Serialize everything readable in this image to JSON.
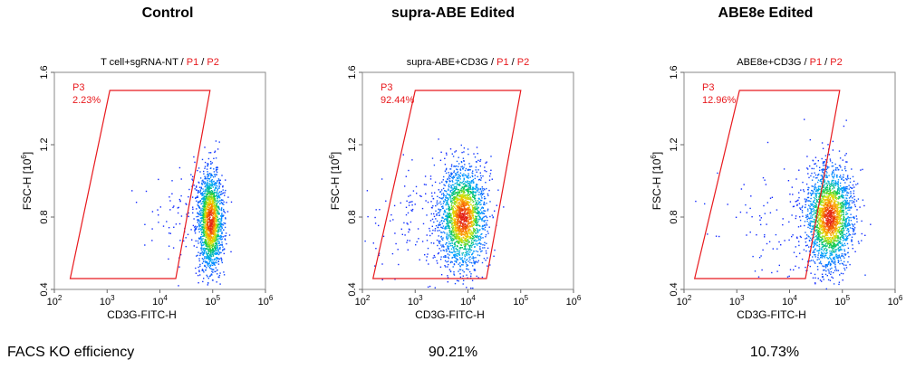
{
  "footer": {
    "label": "FACS KO efficiency",
    "values": [
      "",
      "90.21%",
      "10.73%"
    ]
  },
  "colors": {
    "gate": "#e8191d",
    "dense": "#e02020",
    "sparse": "#1a2cff"
  },
  "chart_data": [
    {
      "type": "scatter",
      "title": "Control",
      "plot_header": {
        "sample": "T cell+sgRNA-NT",
        "gate1": "P1",
        "gate2": "P2"
      },
      "xlabel": "CD3G-FITC-H",
      "ylabel_base": "FSC-H [10",
      "ylabel_exp": "6",
      "ylabel_end": "]",
      "x_scale": "log",
      "xlim_log10": [
        2,
        6
      ],
      "ylim": [
        0.4,
        1.6
      ],
      "x_ticks": [
        {
          "base": "10",
          "exp": "2"
        },
        {
          "base": "10",
          "exp": "3"
        },
        {
          "base": "10",
          "exp": "4"
        },
        {
          "base": "10",
          "exp": "5"
        },
        {
          "base": "10",
          "exp": "6"
        }
      ],
      "y_ticks": [
        "0.4",
        "0.8",
        "1.2",
        "1.6"
      ],
      "gate": {
        "name": "P3",
        "percent": "2.23%",
        "polygon_log10x_y": [
          [
            2.3,
            0.46
          ],
          [
            3.05,
            1.5
          ],
          [
            4.95,
            1.5
          ],
          [
            4.3,
            0.46
          ]
        ]
      },
      "population": {
        "center_log10x": 4.95,
        "center_y": 0.78,
        "spread_x": 0.12,
        "spread_y": 0.14,
        "n": 1800,
        "tail": 0.06
      }
    },
    {
      "type": "scatter",
      "title": "supra-ABE Edited",
      "plot_header": {
        "sample": "supra-ABE+CD3G",
        "gate1": "P1",
        "gate2": "P2"
      },
      "xlabel": "CD3G-FITC-H",
      "ylabel_base": "FSC-H [10",
      "ylabel_exp": "6",
      "ylabel_end": "]",
      "x_scale": "log",
      "xlim_log10": [
        2,
        6
      ],
      "ylim": [
        0.4,
        1.6
      ],
      "x_ticks": [
        {
          "base": "10",
          "exp": "2"
        },
        {
          "base": "10",
          "exp": "3"
        },
        {
          "base": "10",
          "exp": "4"
        },
        {
          "base": "10",
          "exp": "5"
        },
        {
          "base": "10",
          "exp": "6"
        }
      ],
      "y_ticks": [
        "0.4",
        "0.8",
        "1.2",
        "1.6"
      ],
      "gate": {
        "name": "P3",
        "percent": "92.44%",
        "polygon_log10x_y": [
          [
            2.2,
            0.46
          ],
          [
            3.0,
            1.5
          ],
          [
            5.0,
            1.5
          ],
          [
            4.35,
            0.46
          ]
        ]
      },
      "population": {
        "center_log10x": 3.9,
        "center_y": 0.8,
        "spread_x": 0.22,
        "spread_y": 0.14,
        "n": 2200,
        "tail": 0.08
      }
    },
    {
      "type": "scatter",
      "title": "ABE8e Edited",
      "plot_header": {
        "sample": "ABE8e+CD3G",
        "gate1": "P1",
        "gate2": "P2"
      },
      "xlabel": "CD3G-FITC-H",
      "ylabel_base": "FSC-H [10",
      "ylabel_exp": "6",
      "ylabel_end": "]",
      "x_scale": "log",
      "xlim_log10": [
        2,
        6
      ],
      "ylim": [
        0.4,
        1.6
      ],
      "x_ticks": [
        {
          "base": "10",
          "exp": "2"
        },
        {
          "base": "10",
          "exp": "3"
        },
        {
          "base": "10",
          "exp": "4"
        },
        {
          "base": "10",
          "exp": "5"
        },
        {
          "base": "10",
          "exp": "6"
        }
      ],
      "y_ticks": [
        "0.4",
        "0.8",
        "1.2",
        "1.6"
      ],
      "gate": {
        "name": "P3",
        "percent": "12.96%",
        "polygon_log10x_y": [
          [
            2.2,
            0.46
          ],
          [
            3.05,
            1.5
          ],
          [
            4.95,
            1.5
          ],
          [
            4.3,
            0.46
          ]
        ]
      },
      "population": {
        "center_log10x": 4.75,
        "center_y": 0.8,
        "spread_x": 0.22,
        "spread_y": 0.14,
        "n": 2200,
        "tail": 0.05
      }
    }
  ]
}
